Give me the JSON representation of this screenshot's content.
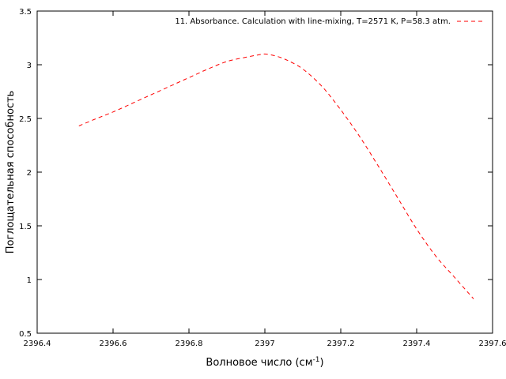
{
  "chart_data": {
    "type": "line",
    "xlabel": "Волновое число (см",
    "xlabel_sup": "-1",
    "xlabel_tail": ")",
    "ylabel": "Поглощательная способность",
    "xlim": [
      2396.4,
      2397.6
    ],
    "ylim": [
      0.5,
      3.5
    ],
    "x_ticks": [
      2396.4,
      2396.6,
      2396.8,
      2397,
      2397.2,
      2397.4,
      2397.6
    ],
    "x_tick_labels": [
      "2396.4",
      "2396.6",
      "2396.8",
      "2397",
      "2397.2",
      "2397.4",
      "2397.6"
    ],
    "y_ticks": [
      0.5,
      1,
      1.5,
      2,
      2.5,
      3,
      3.5
    ],
    "y_tick_labels": [
      "0.5",
      "1",
      "1.5",
      "2",
      "2.5",
      "3",
      "3.5"
    ],
    "grid": false,
    "legend_position": "top-right",
    "series": [
      {
        "name": "11. Absorbance. Calculation with line-mixing, T=2571 K, P=58.3 atm.",
        "color": "#ff0000",
        "dash": "dashed",
        "x": [
          2396.51,
          2396.55,
          2396.6,
          2396.65,
          2396.7,
          2396.75,
          2396.8,
          2396.85,
          2396.9,
          2396.95,
          2396.98,
          2397.0,
          2397.03,
          2397.06,
          2397.1,
          2397.15,
          2397.2,
          2397.25,
          2397.3,
          2397.35,
          2397.4,
          2397.45,
          2397.5,
          2397.55
        ],
        "y": [
          2.43,
          2.49,
          2.56,
          2.64,
          2.72,
          2.8,
          2.88,
          2.96,
          3.03,
          3.07,
          3.09,
          3.1,
          3.08,
          3.04,
          2.96,
          2.8,
          2.58,
          2.33,
          2.05,
          1.76,
          1.47,
          1.22,
          1.02,
          0.82
        ]
      }
    ]
  }
}
